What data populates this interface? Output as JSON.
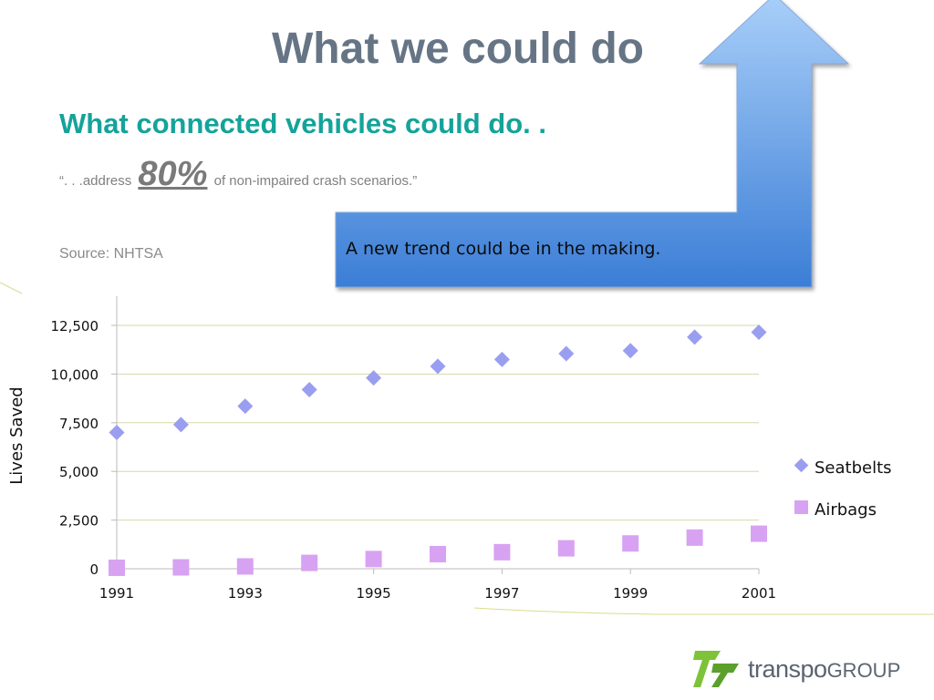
{
  "slide": {
    "title": "What we could do",
    "subtitle": "What connected vehicles could do. .",
    "quote_prefix": "“. . .address",
    "quote_highlight": "80%",
    "quote_suffix": "of non-impaired crash scenarios.”",
    "source": "Source: NHTSA",
    "callout": "A new trend could be in the making."
  },
  "logo": {
    "name_main": "transpo",
    "name_suffix": "GROUP",
    "mark_color": "#7ec23a"
  },
  "colors": {
    "title": "#667585",
    "subtitle": "#14a39a",
    "seatbelts": "#9a9ef0",
    "airbags": "#d8a2f2",
    "arrow_top": "#a9cff9",
    "arrow_bottom": "#3b7ed6",
    "grid": "#d6d9a8"
  },
  "chart_data": {
    "type": "scatter",
    "title": "",
    "xlabel": "",
    "ylabel": "Lives Saved",
    "x": [
      1991,
      1992,
      1993,
      1994,
      1995,
      1996,
      1997,
      1998,
      1999,
      2000,
      2001
    ],
    "x_tick_labels": [
      "1991",
      "1993",
      "1995",
      "1997",
      "1999",
      "2001"
    ],
    "xlim": [
      1991,
      2001
    ],
    "y_tick_labels": [
      "0",
      "2,500",
      "5,000",
      "7,500",
      "10,000",
      "12,500"
    ],
    "ylim": [
      0,
      12500
    ],
    "grid": true,
    "legend": "right",
    "series": [
      {
        "name": "Seatbelts",
        "marker": "diamond",
        "values": [
          7000,
          7400,
          8350,
          9200,
          9800,
          10400,
          10750,
          11050,
          11200,
          11900,
          12150
        ]
      },
      {
        "name": "Airbags",
        "marker": "square",
        "values": [
          50,
          70,
          120,
          300,
          500,
          750,
          850,
          1050,
          1300,
          1600,
          1800
        ]
      }
    ]
  }
}
